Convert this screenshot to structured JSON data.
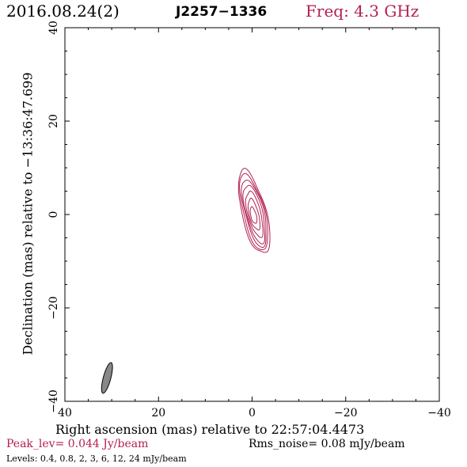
{
  "header": {
    "date": "2016.08.24(2)",
    "source": "J2257−1336",
    "freq": "Freq: 4.3 GHz"
  },
  "colors": {
    "contour": "#b3204f",
    "beam": "#888888",
    "frame": "#000000"
  },
  "footer": {
    "peak": "Peak_lev=  0.044 Jy/beam",
    "rms": "Rms_noise= 0.08 mJy/beam",
    "levels": "Levels: 0.4, 0.8,   2,   3,   6,  12,  24 mJy/beam"
  },
  "chart_data": {
    "type": "contour",
    "xlabel": "Right ascension (mas) relative to 22:57:04.4473",
    "ylabel": "Declination (mas) relative to −13:36:47.699",
    "xlim": [
      40,
      -40
    ],
    "ylim": [
      -40,
      40
    ],
    "xticks": [
      40,
      20,
      0,
      -20,
      -40
    ],
    "yticks": [
      -40,
      -20,
      0,
      20,
      40
    ],
    "xtick_labels": [
      "40",
      "20",
      "0",
      "−20",
      "−40"
    ],
    "ytick_labels": [
      "−40",
      "−20",
      "0",
      "20",
      "40"
    ],
    "grid": false,
    "contour_levels_mJy": [
      0.4,
      0.8,
      2,
      3,
      6,
      12,
      24
    ],
    "peak_Jy_per_beam": 0.044,
    "rms_mJy_per_beam": 0.08,
    "contours": [
      {
        "level": 0.4,
        "x0": -0.4,
        "y0": 0.4,
        "a": 9.2,
        "b": 2.6,
        "pa": -14
      },
      {
        "level": 0.8,
        "x0": -0.4,
        "y0": 0.4,
        "a": 8.4,
        "b": 2.3,
        "pa": -14
      },
      {
        "level": 2,
        "x0": -0.5,
        "y0": 0.3,
        "a": 7.4,
        "b": 2.0,
        "pa": -14
      },
      {
        "level": 3,
        "x0": -0.5,
        "y0": 0.2,
        "a": 6.4,
        "b": 1.75,
        "pa": -14
      },
      {
        "level": 6,
        "x0": -0.5,
        "y0": 0.1,
        "a": 5.0,
        "b": 1.4,
        "pa": -14
      },
      {
        "level": 12,
        "x0": -0.4,
        "y0": 0.0,
        "a": 3.4,
        "b": 1.0,
        "pa": -14
      },
      {
        "level": 24,
        "x0": -0.3,
        "y0": -0.2,
        "a": 1.8,
        "b": 0.6,
        "pa": -14
      }
    ],
    "beam": {
      "x0": 31,
      "y0": -35,
      "a": 3.4,
      "b": 0.8,
      "pa": -15
    }
  }
}
